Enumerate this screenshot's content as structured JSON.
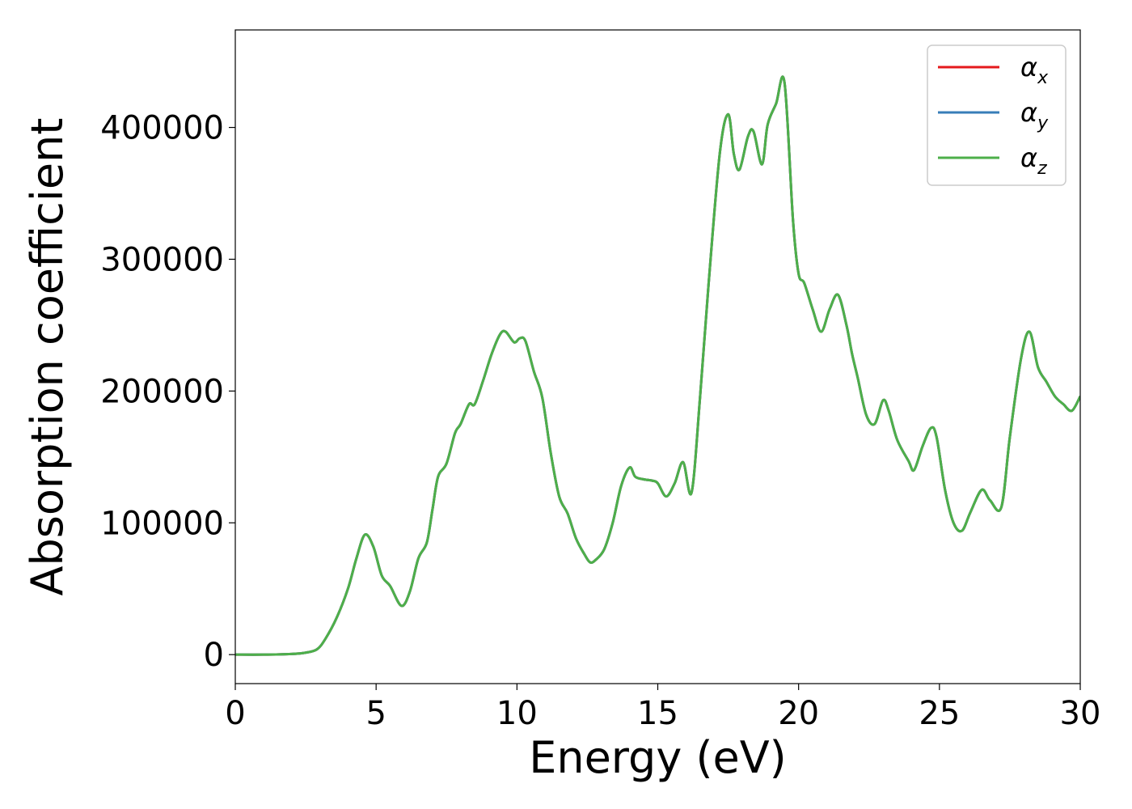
{
  "chart_data": {
    "type": "line",
    "xlabel": "Energy (eV)",
    "ylabel": "Absorption coefficient",
    "xlim": [
      0,
      30
    ],
    "ylim": [
      -22000,
      474000
    ],
    "xticks": [
      0,
      5,
      10,
      15,
      20,
      25,
      30
    ],
    "xtick_labels": [
      "0",
      "5",
      "10",
      "15",
      "20",
      "25",
      "30"
    ],
    "yticks": [
      0,
      100000,
      200000,
      300000,
      400000
    ],
    "ytick_labels": [
      "0",
      "100000",
      "200000",
      "300000",
      "400000"
    ],
    "grid": false,
    "legend": "top-right",
    "colors": {
      "alpha_x": "#e41a1c",
      "alpha_y": "#377eb8",
      "alpha_z": "#4daf4a"
    },
    "series": [
      {
        "name": "α",
        "subscript": "x",
        "color": "#e41a1c"
      },
      {
        "name": "α",
        "subscript": "y",
        "color": "#377eb8"
      },
      {
        "name": "α",
        "subscript": "z",
        "color": "#4daf4a"
      }
    ],
    "x": [
      0,
      1,
      2,
      2.5,
      2.9,
      3.2,
      3.6,
      4.0,
      4.3,
      4.6,
      4.9,
      5.2,
      5.5,
      5.9,
      6.2,
      6.5,
      6.8,
      7.0,
      7.2,
      7.5,
      7.8,
      8.0,
      8.3,
      8.5,
      8.8,
      9.1,
      9.4,
      9.6,
      9.9,
      10.1,
      10.3,
      10.6,
      10.9,
      11.2,
      11.5,
      11.8,
      12.1,
      12.4,
      12.6,
      12.8,
      13.1,
      13.4,
      13.7,
      14.0,
      14.2,
      14.5,
      14.8,
      15.0,
      15.3,
      15.6,
      15.9,
      16.2,
      16.5,
      16.8,
      17.2,
      17.5,
      17.7,
      17.9,
      18.2,
      18.4,
      18.7,
      18.9,
      19.2,
      19.5,
      19.8,
      20.0,
      20.2,
      20.5,
      20.8,
      21.1,
      21.4,
      21.7,
      21.9,
      22.1,
      22.4,
      22.7,
      23.0,
      23.2,
      23.5,
      23.9,
      24.1,
      24.4,
      24.7,
      24.9,
      25.2,
      25.5,
      25.8,
      26.1,
      26.5,
      26.8,
      27.2,
      27.5,
      27.9,
      28.2,
      28.5,
      28.8,
      29.1,
      29.4,
      29.7,
      30.0
    ],
    "y": [
      0,
      0,
      500,
      1500,
      4000,
      12000,
      28000,
      50000,
      73000,
      91000,
      82000,
      60000,
      52000,
      37000,
      48000,
      73000,
      85000,
      110000,
      135000,
      145000,
      168000,
      175000,
      190000,
      190000,
      208000,
      228000,
      243000,
      245000,
      237000,
      240000,
      238000,
      215000,
      195000,
      153000,
      120000,
      107000,
      88000,
      76000,
      70000,
      72000,
      80000,
      100000,
      128000,
      142000,
      135000,
      133000,
      132000,
      130000,
      120000,
      130000,
      146000,
      123000,
      195000,
      280000,
      380000,
      410000,
      380000,
      368000,
      393000,
      397000,
      372000,
      402000,
      418000,
      434000,
      330000,
      289000,
      282000,
      262000,
      245000,
      262000,
      273000,
      250000,
      228000,
      210000,
      182000,
      175000,
      193000,
      185000,
      163000,
      147000,
      140000,
      158000,
      172000,
      165000,
      125000,
      100000,
      94000,
      108000,
      125000,
      117000,
      112000,
      165000,
      225000,
      245000,
      218000,
      207000,
      196000,
      190000,
      185000,
      196000
    ]
  }
}
